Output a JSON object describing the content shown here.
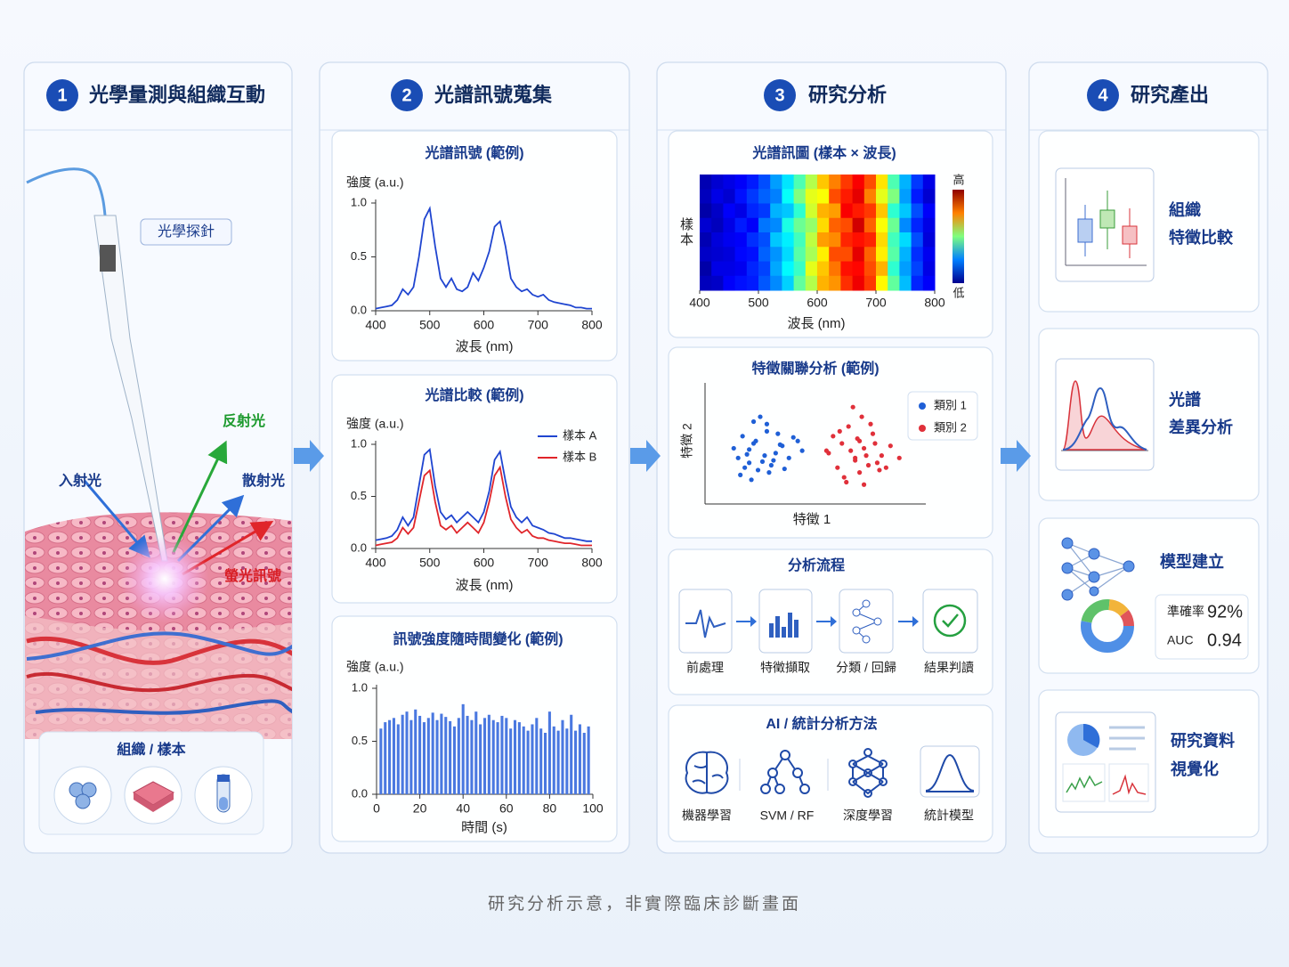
{
  "steps": [
    {
      "number": 1,
      "title": "光學量測與組織互動"
    },
    {
      "number": 2,
      "title": "光譜訊號蒐集"
    },
    {
      "number": 3,
      "title": "研究分析"
    },
    {
      "number": 4,
      "title": "研究產出"
    }
  ],
  "measurement": {
    "probe": "光學探針",
    "reflected": "反射光",
    "incident": "入射光",
    "scattered": "散射光",
    "fluorescence": "螢光訊號",
    "sample_title": "組織 / 樣本"
  },
  "signal_collection": {
    "spectrum": {
      "type": "line",
      "title": "光譜訊號 (範例)",
      "ylabel": "強度 (a.u.)",
      "xlabel": "波長 (nm)",
      "x": [
        400,
        410,
        420,
        430,
        440,
        450,
        460,
        470,
        480,
        490,
        500,
        510,
        520,
        530,
        540,
        550,
        560,
        570,
        580,
        590,
        600,
        610,
        620,
        630,
        640,
        650,
        660,
        670,
        680,
        690,
        700,
        710,
        720,
        730,
        740,
        750,
        760,
        770,
        780,
        790,
        800
      ],
      "series": [
        {
          "color": "#1f45d0",
          "values": [
            0.02,
            0.03,
            0.04,
            0.05,
            0.1,
            0.2,
            0.15,
            0.22,
            0.5,
            0.85,
            0.95,
            0.6,
            0.3,
            0.22,
            0.3,
            0.2,
            0.18,
            0.22,
            0.35,
            0.28,
            0.4,
            0.55,
            0.78,
            0.83,
            0.6,
            0.3,
            0.22,
            0.18,
            0.2,
            0.15,
            0.13,
            0.15,
            0.1,
            0.08,
            0.07,
            0.06,
            0.05,
            0.03,
            0.03,
            0.02,
            0.02
          ]
        }
      ],
      "xlim": [
        400,
        800
      ],
      "ylim": [
        0,
        1
      ],
      "xticks": [
        400,
        500,
        600,
        700,
        800
      ],
      "yticks": [
        {
          "value": 0,
          "label": "0.0"
        },
        0.5,
        {
          "value": 1,
          "label": "1.0"
        }
      ]
    },
    "comparison": {
      "type": "line",
      "title": "光譜比較 (範例)",
      "ylabel": "強度 (a.u.)",
      "xlabel": "波長 (nm)",
      "x": [
        400,
        410,
        420,
        430,
        440,
        450,
        460,
        470,
        480,
        490,
        500,
        510,
        520,
        530,
        540,
        550,
        560,
        570,
        580,
        590,
        600,
        610,
        620,
        630,
        640,
        650,
        660,
        670,
        680,
        690,
        700,
        710,
        720,
        730,
        740,
        750,
        760,
        770,
        780,
        790,
        800
      ],
      "series": [
        {
          "name": "樣本 A",
          "color": "#1f45d0",
          "values": [
            0.08,
            0.09,
            0.1,
            0.12,
            0.18,
            0.3,
            0.22,
            0.3,
            0.6,
            0.9,
            0.95,
            0.6,
            0.35,
            0.28,
            0.32,
            0.25,
            0.3,
            0.35,
            0.3,
            0.25,
            0.35,
            0.55,
            0.85,
            0.93,
            0.65,
            0.4,
            0.3,
            0.25,
            0.3,
            0.22,
            0.2,
            0.18,
            0.15,
            0.14,
            0.12,
            0.1,
            0.1,
            0.09,
            0.08,
            0.07,
            0.07
          ]
        },
        {
          "name": "樣本 B",
          "color": "#e0252a",
          "values": [
            0.03,
            0.04,
            0.05,
            0.06,
            0.1,
            0.2,
            0.14,
            0.2,
            0.45,
            0.7,
            0.75,
            0.45,
            0.22,
            0.18,
            0.22,
            0.15,
            0.2,
            0.25,
            0.2,
            0.15,
            0.25,
            0.45,
            0.7,
            0.78,
            0.5,
            0.28,
            0.2,
            0.15,
            0.18,
            0.12,
            0.1,
            0.1,
            0.08,
            0.07,
            0.06,
            0.05,
            0.05,
            0.04,
            0.03,
            0.03,
            0.03
          ]
        }
      ],
      "xlim": [
        400,
        800
      ],
      "ylim": [
        0,
        1
      ],
      "xticks": [
        400,
        500,
        600,
        700,
        800
      ],
      "yticks": [
        {
          "value": 0,
          "label": "0.0"
        },
        0.5,
        {
          "value": 1,
          "label": "1.0"
        }
      ],
      "legend": "upper right"
    },
    "time_series": {
      "type": "bar",
      "title": "訊號強度隨時間變化 (範例)",
      "ylabel": "強度 (a.u.)",
      "xlabel": "時間 (s)",
      "color": "#4a78e0",
      "x": [
        2,
        4,
        6,
        8,
        10,
        12,
        14,
        16,
        18,
        20,
        22,
        24,
        26,
        28,
        30,
        32,
        34,
        36,
        38,
        40,
        42,
        44,
        46,
        48,
        50,
        52,
        54,
        56,
        58,
        60,
        62,
        64,
        66,
        68,
        70,
        72,
        74,
        76,
        78,
        80,
        82,
        84,
        86,
        88,
        90,
        92,
        94,
        96,
        98
      ],
      "values": [
        0.62,
        0.68,
        0.7,
        0.72,
        0.66,
        0.75,
        0.78,
        0.7,
        0.8,
        0.74,
        0.68,
        0.72,
        0.77,
        0.7,
        0.76,
        0.73,
        0.69,
        0.64,
        0.72,
        0.85,
        0.74,
        0.7,
        0.78,
        0.66,
        0.72,
        0.75,
        0.7,
        0.68,
        0.74,
        0.72,
        0.62,
        0.7,
        0.68,
        0.64,
        0.6,
        0.66,
        0.72,
        0.62,
        0.58,
        0.78,
        0.64,
        0.6,
        0.7,
        0.62,
        0.75,
        0.6,
        0.66,
        0.58,
        0.64
      ],
      "xlim": [
        0,
        100
      ],
      "ylim": [
        0,
        1
      ],
      "xticks": [
        0,
        20,
        40,
        60,
        80,
        100
      ],
      "yticks": [
        {
          "value": 0,
          "label": "0.0"
        },
        0.5,
        {
          "value": 1,
          "label": "1.0"
        }
      ]
    }
  },
  "analysis": {
    "heatmap": {
      "type": "heatmap",
      "title": "光譜訊圖 (樣本 × 波長)",
      "xlabel": "波長 (nm)",
      "ylabel": "樣本",
      "colorbar_high": "高",
      "colorbar_low": "低",
      "xlim": [
        400,
        800
      ],
      "xticks": [
        400,
        500,
        600,
        700,
        800
      ],
      "values": [
        [
          0.05,
          0.08,
          0.1,
          0.12,
          0.15,
          0.2,
          0.28,
          0.35,
          0.45,
          0.55,
          0.68,
          0.75,
          0.82,
          0.88,
          0.8,
          0.65,
          0.45,
          0.3,
          0.18,
          0.1
        ],
        [
          0.06,
          0.1,
          0.08,
          0.14,
          0.18,
          0.22,
          0.25,
          0.38,
          0.5,
          0.6,
          0.62,
          0.8,
          0.85,
          0.9,
          0.75,
          0.6,
          0.5,
          0.28,
          0.15,
          0.08
        ],
        [
          0.04,
          0.07,
          0.12,
          0.1,
          0.16,
          0.18,
          0.3,
          0.32,
          0.42,
          0.58,
          0.7,
          0.72,
          0.88,
          0.85,
          0.82,
          0.68,
          0.42,
          0.32,
          0.2,
          0.12
        ],
        [
          0.08,
          0.06,
          0.1,
          0.15,
          0.12,
          0.24,
          0.26,
          0.4,
          0.48,
          0.52,
          0.66,
          0.78,
          0.8,
          0.92,
          0.78,
          0.62,
          0.48,
          0.26,
          0.16,
          0.1
        ],
        [
          0.05,
          0.09,
          0.11,
          0.12,
          0.17,
          0.2,
          0.32,
          0.36,
          0.44,
          0.56,
          0.72,
          0.74,
          0.84,
          0.86,
          0.84,
          0.66,
          0.44,
          0.34,
          0.2,
          0.09
        ],
        [
          0.07,
          0.08,
          0.09,
          0.13,
          0.14,
          0.22,
          0.27,
          0.34,
          0.46,
          0.54,
          0.64,
          0.8,
          0.8,
          0.9,
          0.78,
          0.64,
          0.46,
          0.3,
          0.17,
          0.11
        ],
        [
          0.04,
          0.1,
          0.1,
          0.11,
          0.16,
          0.19,
          0.29,
          0.37,
          0.43,
          0.6,
          0.68,
          0.76,
          0.86,
          0.87,
          0.8,
          0.7,
          0.42,
          0.28,
          0.19,
          0.1
        ],
        [
          0.06,
          0.07,
          0.12,
          0.14,
          0.15,
          0.21,
          0.26,
          0.33,
          0.47,
          0.55,
          0.7,
          0.73,
          0.83,
          0.89,
          0.82,
          0.63,
          0.47,
          0.31,
          0.16,
          0.12
        ]
      ]
    },
    "scatter": {
      "type": "scatter",
      "title": "特徵關聯分析 (範例)",
      "xlabel": "特徵 1",
      "ylabel": "特徵 2",
      "xlim": [
        0,
        10
      ],
      "ylim": [
        0,
        10
      ],
      "legend": "upper right",
      "series": [
        {
          "name": "類別 1",
          "color": "#1f5fd6",
          "x": [
            1.5,
            2.0,
            2.3,
            2.8,
            3.2,
            1.8,
            2.6,
            3.5,
            4.0,
            2.2,
            1.3,
            2.9,
            3.3,
            2.1,
            2.7,
            3.8,
            1.7,
            2.4,
            3.0,
            4.4,
            2.5,
            1.9,
            3.6,
            2.2,
            2.8,
            3.1,
            1.6,
            4.2,
            2.0,
            3.4
          ],
          "y": [
            3.8,
            4.5,
            5.2,
            6.0,
            4.2,
            3.0,
            3.5,
            4.8,
            5.5,
            6.8,
            4.6,
            2.6,
            5.8,
            2.0,
            4.0,
            3.8,
            5.6,
            2.8,
            3.2,
            4.4,
            7.2,
            4.1,
            2.9,
            5.0,
            6.6,
            3.6,
            2.4,
            5.2,
            3.4,
            4.9
          ]
        },
        {
          "name": "類別 2",
          "color": "#e0303a",
          "x": [
            5.6,
            6.2,
            6.8,
            7.2,
            7.6,
            8.0,
            6.5,
            7.0,
            7.4,
            6.0,
            8.4,
            6.9,
            7.8,
            5.8,
            6.6,
            7.1,
            7.5,
            6.3,
            8.2,
            7.3,
            6.7,
            7.9,
            6.1,
            7.0,
            6.4,
            8.8,
            5.5,
            7.7,
            6.8,
            7.2
          ],
          "y": [
            4.2,
            5.0,
            3.6,
            4.6,
            5.8,
            4.0,
            6.4,
            2.6,
            3.2,
            3.0,
            4.8,
            5.4,
            3.4,
            5.6,
            4.4,
            7.2,
            6.6,
            2.2,
            3.0,
            4.0,
            8.0,
            2.8,
            6.0,
            5.2,
            1.8,
            3.8,
            4.4,
            5.0,
            3.8,
            1.6
          ]
        }
      ]
    },
    "workflow": {
      "title": "分析流程",
      "steps": [
        "前處理",
        "特徵擷取",
        "分類 / 回歸",
        "結果判讀"
      ]
    },
    "methods": {
      "title": "AI / 統計分析方法",
      "items": [
        "機器學習",
        "SVM / RF",
        "深度學習",
        "統計模型"
      ]
    }
  },
  "outputs": [
    {
      "lines": [
        "組織",
        "特徵比較"
      ]
    },
    {
      "lines": [
        "光譜",
        "差異分析"
      ]
    },
    {
      "title": "模型建立",
      "metrics": [
        {
          "name": "準確率",
          "value": "92%"
        },
        {
          "name": "AUC",
          "value": "0.94"
        }
      ]
    },
    {
      "lines": [
        "研究資料",
        "視覺化"
      ]
    }
  ],
  "footer": "研究分析示意，非實際臨床診斷畫面"
}
